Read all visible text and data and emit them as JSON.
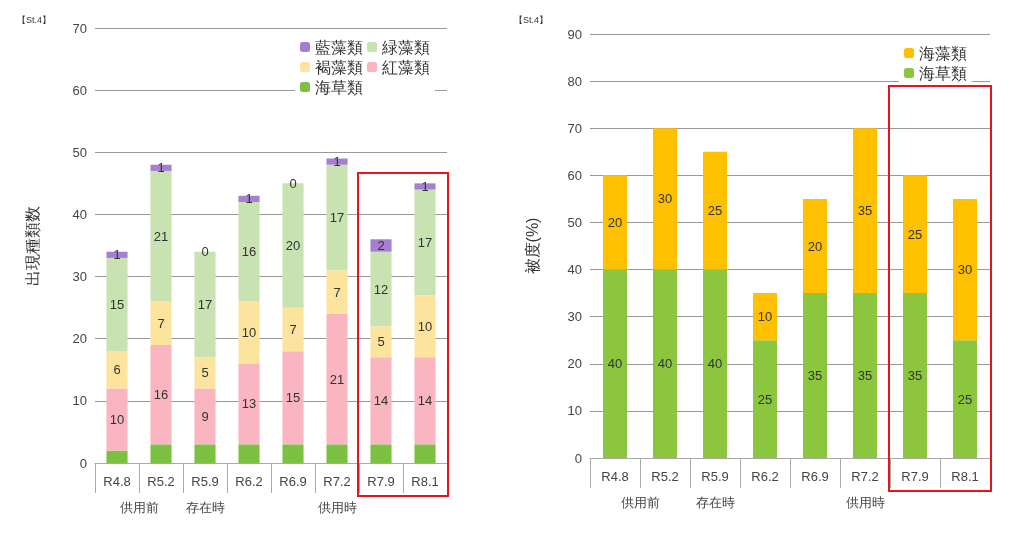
{
  "chart_data": [
    {
      "type": "bar",
      "title": "【St.4】",
      "ylabel": "出現種類数",
      "stacked": true,
      "categories": [
        "R4.8",
        "R5.2",
        "R5.9",
        "R6.2",
        "R6.9",
        "R7.2",
        "R7.9",
        "R8.1"
      ],
      "series": [
        {
          "name": "海草類",
          "color": "#7cc142",
          "values": [
            2,
            3,
            3,
            3,
            3,
            3,
            3,
            3
          ]
        },
        {
          "name": "紅藻類",
          "color": "#f9b5c0",
          "values": [
            10,
            16,
            9,
            13,
            15,
            21,
            14,
            14
          ],
          "value_labels": [
            "10",
            "16",
            "9",
            "13",
            "15",
            "21",
            "14",
            "14"
          ]
        },
        {
          "name": "褐藻類",
          "color": "#fde49e",
          "values": [
            6,
            7,
            5,
            10,
            7,
            7,
            5,
            10
          ],
          "value_labels": [
            "6",
            "7",
            "5",
            "10",
            "7",
            "7",
            "5",
            "10"
          ]
        },
        {
          "name": "緑藻類",
          "color": "#c8e2b1",
          "values": [
            15,
            21,
            17,
            16,
            20,
            17,
            12,
            17
          ],
          "value_labels": [
            "15",
            "21",
            "17",
            "16",
            "20",
            "17",
            "12",
            "17"
          ]
        },
        {
          "name": "藍藻類",
          "color": "#a67fd1",
          "values": [
            1,
            1,
            0,
            1,
            0,
            1,
            2,
            1
          ],
          "value_labels": [
            "1",
            "1",
            "0",
            "1",
            "0",
            "1",
            "2",
            "1"
          ]
        }
      ],
      "ylim": [
        0,
        70
      ],
      "yticks": [
        0,
        10,
        20,
        30,
        40,
        50,
        60,
        70
      ],
      "grid": "y",
      "legend": "top right",
      "annotations": [
        "供用前",
        "存在時",
        "供用時"
      ]
    },
    {
      "type": "bar",
      "title": "【St.4】",
      "ylabel": "被度(%)",
      "stacked": true,
      "categories": [
        "R4.8",
        "R5.2",
        "R5.9",
        "R6.2",
        "R6.9",
        "R7.2",
        "R7.9",
        "R8.1"
      ],
      "series": [
        {
          "name": "海草類",
          "color": "#8cc63f",
          "values": [
            40,
            40,
            40,
            25,
            35,
            35,
            35,
            25
          ]
        },
        {
          "name": "海藻類",
          "color": "#ffc000",
          "values": [
            20,
            30,
            25,
            10,
            20,
            35,
            25,
            30
          ]
        }
      ],
      "data_labels": true,
      "ylim": [
        0,
        90
      ],
      "yticks": [
        0,
        10,
        20,
        30,
        40,
        50,
        60,
        70,
        80,
        90
      ],
      "grid": "y",
      "legend": "top right",
      "annotations": [
        "供用前",
        "存在時",
        "供用時"
      ]
    }
  ]
}
